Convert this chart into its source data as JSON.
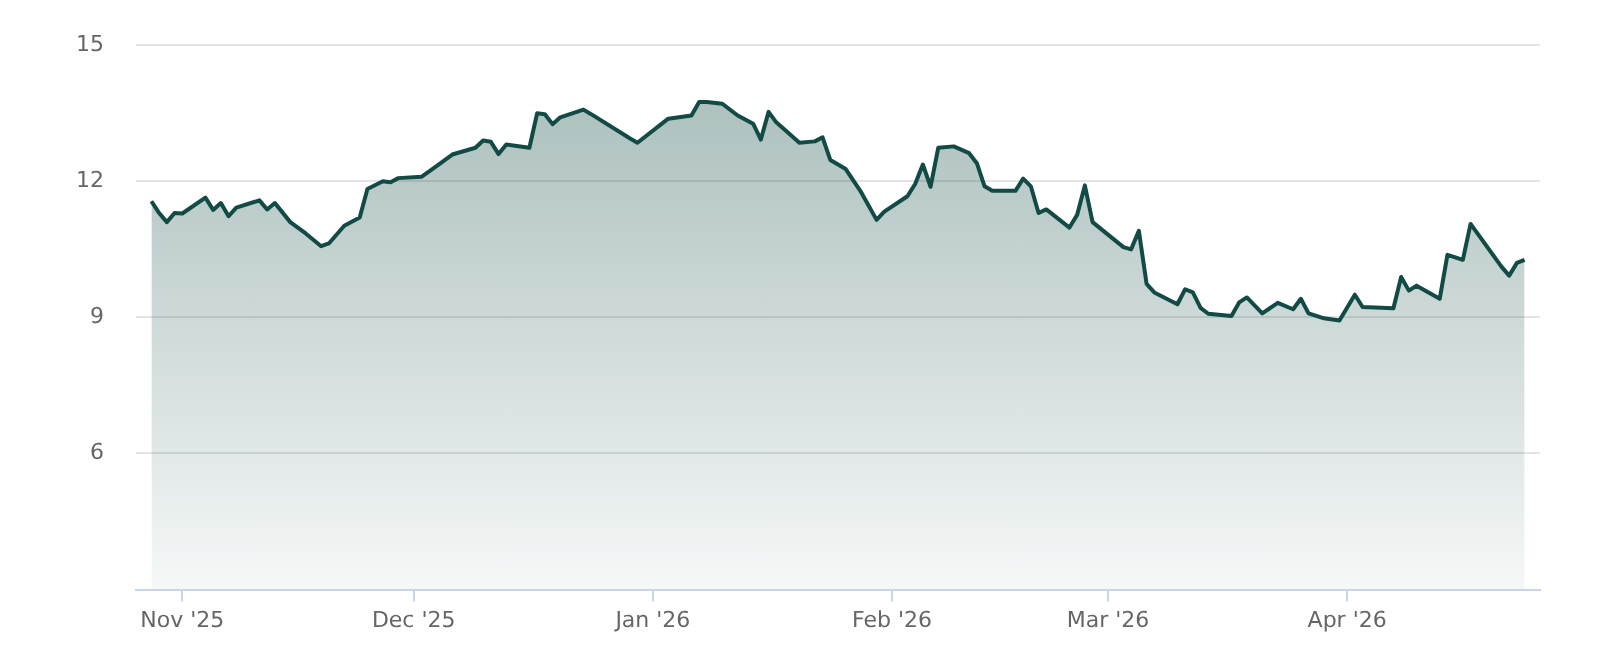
{
  "chart_data": {
    "type": "area",
    "x": [
      "2025-10-28",
      "2025-10-29",
      "2025-10-30",
      "2025-10-31",
      "2025-11-01",
      "2025-11-04",
      "2025-11-05",
      "2025-11-06",
      "2025-11-07",
      "2025-11-08",
      "2025-11-11",
      "2025-11-12",
      "2025-11-13",
      "2025-11-15",
      "2025-11-17",
      "2025-11-19",
      "2025-11-20",
      "2025-11-22",
      "2025-11-24",
      "2025-11-25",
      "2025-11-27",
      "2025-11-28",
      "2025-11-29",
      "2025-12-02",
      "2025-12-04",
      "2025-12-06",
      "2025-12-09",
      "2025-12-10",
      "2025-12-11",
      "2025-12-12",
      "2025-12-13",
      "2025-12-16",
      "2025-12-17",
      "2025-12-18",
      "2025-12-19",
      "2025-12-20",
      "2025-12-23",
      "2025-12-24",
      "2025-12-29",
      "2025-12-30",
      "2026-01-03",
      "2026-01-06",
      "2026-01-07",
      "2026-01-08",
      "2026-01-10",
      "2026-01-12",
      "2026-01-14",
      "2026-01-15",
      "2026-01-16",
      "2026-01-17",
      "2026-01-20",
      "2026-01-22",
      "2026-01-23",
      "2026-01-24",
      "2026-01-26",
      "2026-01-28",
      "2026-01-30",
      "2026-01-31",
      "2026-02-03",
      "2026-02-04",
      "2026-02-05",
      "2026-02-06",
      "2026-02-07",
      "2026-02-09",
      "2026-02-11",
      "2026-02-12",
      "2026-02-13",
      "2026-02-14",
      "2026-02-17",
      "2026-02-18",
      "2026-02-19",
      "2026-02-20",
      "2026-02-21",
      "2026-02-24",
      "2026-02-25",
      "2026-02-26",
      "2026-02-27",
      "2026-03-03",
      "2026-03-04",
      "2026-03-05",
      "2026-03-06",
      "2026-03-07",
      "2026-03-10",
      "2026-03-11",
      "2026-03-12",
      "2026-03-13",
      "2026-03-14",
      "2026-03-17",
      "2026-03-18",
      "2026-03-19",
      "2026-03-21",
      "2026-03-23",
      "2026-03-25",
      "2026-03-26",
      "2026-03-27",
      "2026-03-29",
      "2026-03-31",
      "2026-04-02",
      "2026-04-03",
      "2026-04-07",
      "2026-04-08",
      "2026-04-09",
      "2026-04-10",
      "2026-04-13",
      "2026-04-14",
      "2026-04-16",
      "2026-04-17",
      "2026-04-21",
      "2026-04-22",
      "2026-04-23",
      "2026-04-24"
    ],
    "series": [
      {
        "color": "#124b45",
        "values": [
          11.56,
          11.3,
          11.1,
          11.3,
          11.29,
          11.64,
          11.37,
          11.52,
          11.23,
          11.42,
          11.58,
          11.38,
          11.52,
          11.1,
          10.85,
          10.57,
          10.63,
          11.02,
          11.2,
          11.83,
          12.0,
          11.98,
          12.07,
          12.1,
          12.34,
          12.59,
          12.74,
          12.9,
          12.87,
          12.6,
          12.81,
          12.74,
          13.5,
          13.48,
          13.26,
          13.41,
          13.58,
          13.48,
          12.95,
          12.85,
          13.38,
          13.45,
          13.75,
          13.75,
          13.71,
          13.45,
          13.27,
          12.92,
          13.53,
          13.3,
          12.85,
          12.88,
          12.97,
          12.47,
          12.27,
          11.76,
          11.15,
          11.33,
          11.67,
          11.94,
          12.37,
          11.88,
          12.74,
          12.77,
          12.62,
          12.4,
          11.89,
          11.79,
          11.79,
          12.06,
          11.89,
          11.3,
          11.38,
          10.98,
          11.26,
          11.91,
          11.1,
          10.55,
          10.5,
          10.91,
          9.74,
          9.55,
          9.29,
          9.62,
          9.55,
          9.21,
          9.08,
          9.03,
          9.33,
          9.44,
          9.09,
          9.32,
          9.18,
          9.41,
          9.09,
          8.98,
          8.93,
          9.5,
          9.23,
          9.2,
          9.89,
          9.59,
          9.7,
          9.41,
          10.38,
          10.27,
          11.06,
          10.12,
          9.92,
          10.2,
          10.27
        ]
      }
    ],
    "xlim": [
      "2025-10-26",
      "2026-04-26"
    ],
    "xticks": [
      {
        "value": "2025-11-01",
        "label": "Nov '25"
      },
      {
        "value": "2025-12-01",
        "label": "Dec '25"
      },
      {
        "value": "2026-01-01",
        "label": "Jan '26"
      },
      {
        "value": "2026-02-01",
        "label": "Feb '26"
      },
      {
        "value": "2026-03-01",
        "label": "Mar '26"
      },
      {
        "value": "2026-04-01",
        "label": "Apr '26"
      }
    ],
    "ylim": [
      3,
      15
    ],
    "yticks": [
      6,
      9,
      12,
      15
    ],
    "grid": "y",
    "legend": false,
    "marker": "none",
    "line_style": "solid"
  }
}
